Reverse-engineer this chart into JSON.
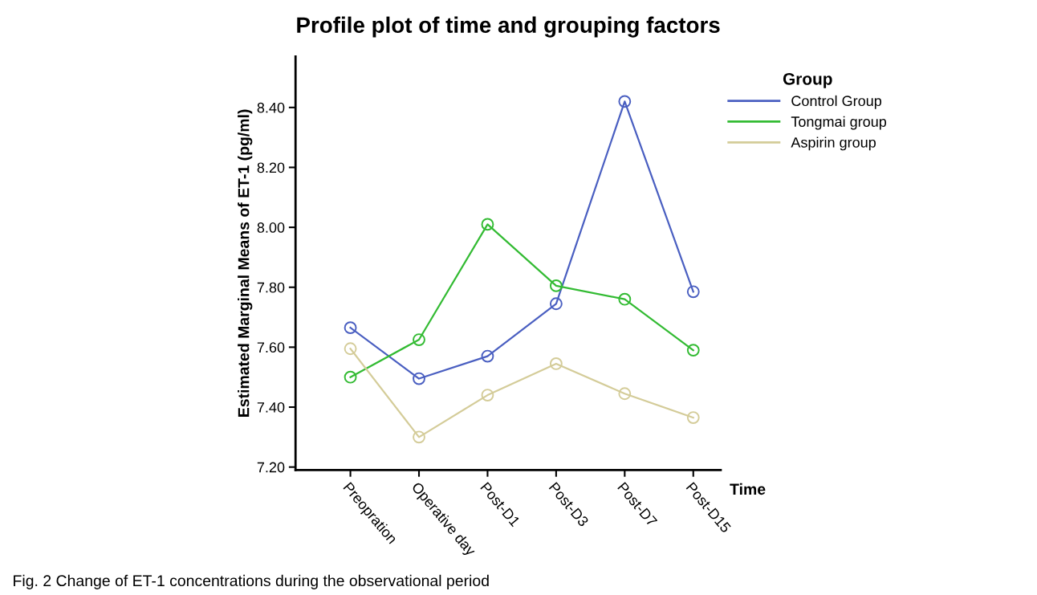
{
  "chart_data": {
    "type": "line",
    "title": "Profile plot of time and grouping factors",
    "xlabel": "Time",
    "ylabel": "Estimated Marginal Means of ET-1 (pg/ml)",
    "legend_title": "Group",
    "categories": [
      "Preopration",
      "Operative day",
      "Post-D1",
      "Post-D3",
      "Post-D7",
      "Post-D15"
    ],
    "series": [
      {
        "name": "Control Group",
        "color": "#4a5fc1",
        "values": [
          7.665,
          7.495,
          7.57,
          7.745,
          8.42,
          7.785
        ]
      },
      {
        "name": "Tongmai group",
        "color": "#33bb33",
        "values": [
          7.5,
          7.625,
          8.01,
          7.805,
          7.76,
          7.59
        ]
      },
      {
        "name": "Aspirin group",
        "color": "#d4cc99",
        "values": [
          7.595,
          7.3,
          7.44,
          7.545,
          7.445,
          7.365
        ]
      }
    ],
    "ylim": [
      7.19,
      8.57
    ],
    "yticks": [
      {
        "value": 7.2,
        "label": "7.20"
      },
      {
        "value": 7.4,
        "label": "7.40"
      },
      {
        "value": 7.6,
        "label": "7.60"
      },
      {
        "value": 7.8,
        "label": "7.80"
      },
      {
        "value": 8.0,
        "label": "8.00"
      },
      {
        "value": 8.2,
        "label": "8.20"
      },
      {
        "value": 8.4,
        "label": "8.40"
      }
    ],
    "marker": "circle",
    "line_style": "solid",
    "grid": false,
    "legend": "top right",
    "annotations": [
      "Fig. 2 Change of ET-1 concentrations during the observational period"
    ]
  }
}
